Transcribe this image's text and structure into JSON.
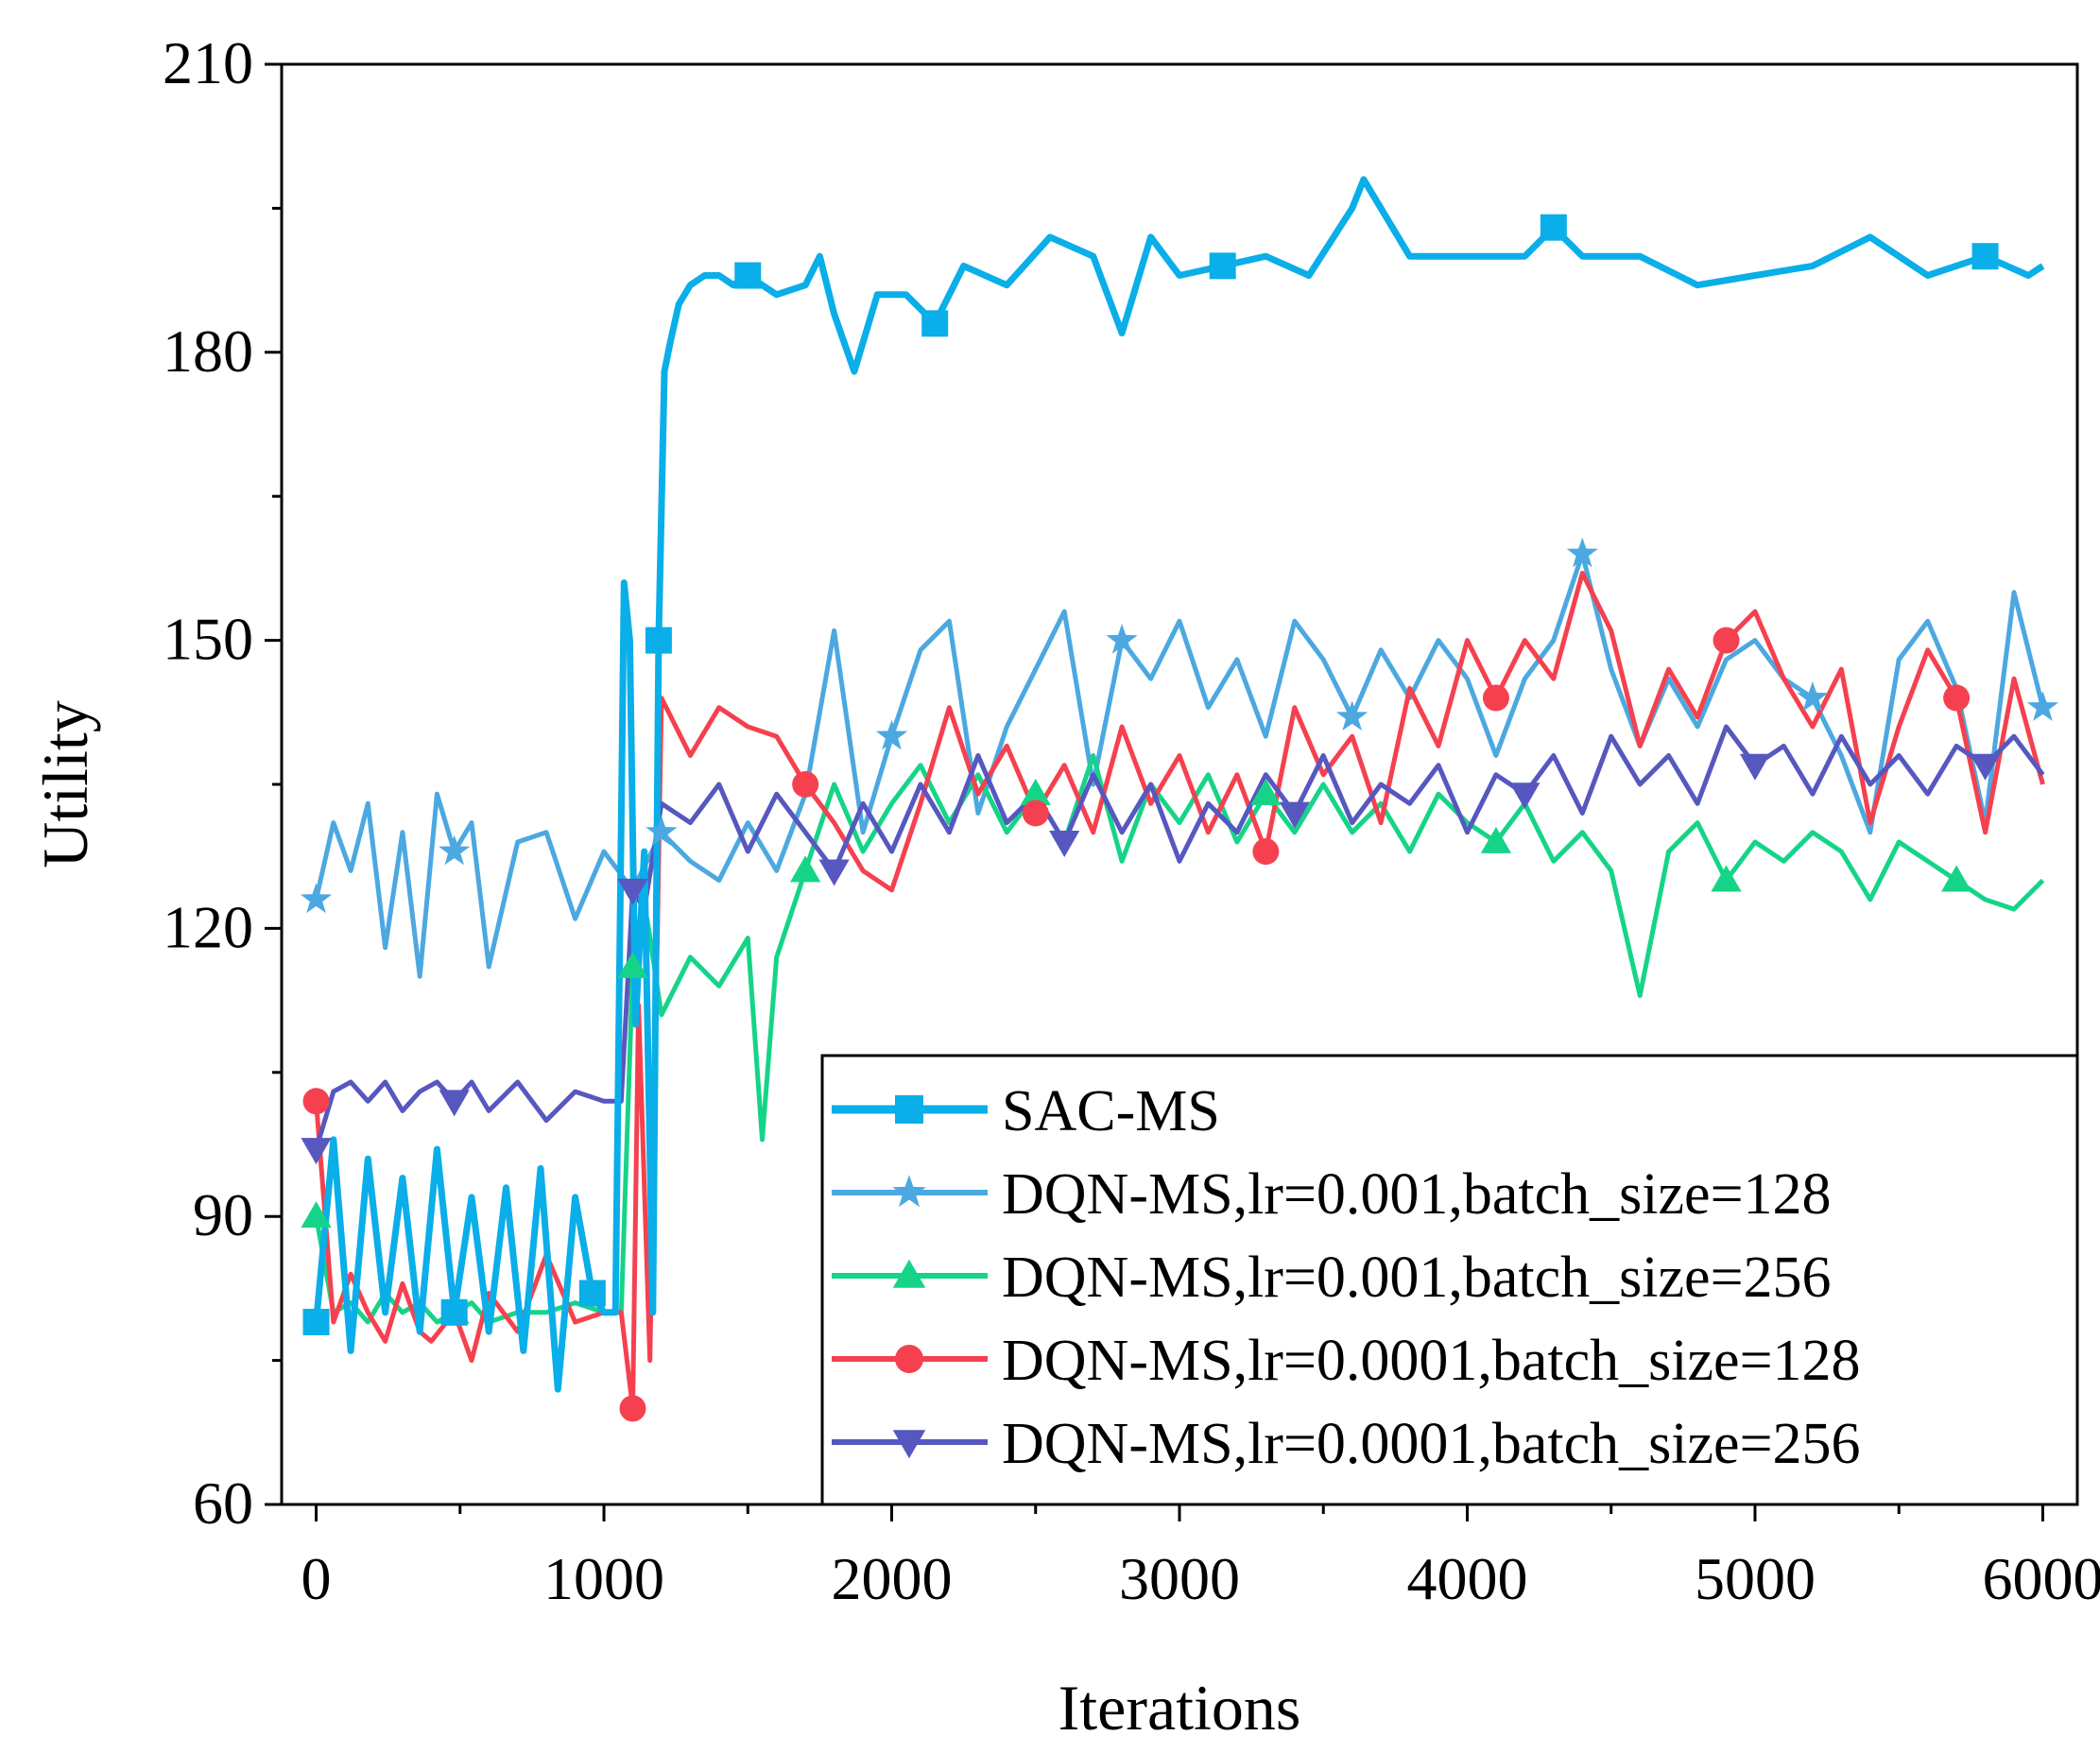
{
  "chart_data": {
    "type": "line",
    "title": "",
    "xlabel": "Iterations",
    "ylabel": "Utility",
    "xlim": [
      -120,
      6120
    ],
    "ylim": [
      60,
      210
    ],
    "xticks": [
      0,
      1000,
      2000,
      3000,
      4000,
      5000,
      6000
    ],
    "xtick_labels": [
      "0",
      "1000",
      "2000",
      "3000",
      "4000",
      "5000",
      "6000"
    ],
    "yticks": [
      60,
      90,
      120,
      150,
      180,
      210
    ],
    "ytick_labels": [
      "60",
      "90",
      "120",
      "150",
      "180",
      "210"
    ],
    "legend_position": "lower-right",
    "series": [
      {
        "name": "SAC-MS",
        "color": "#0aaee8",
        "marker": "square",
        "x": [
          0,
          60,
          120,
          180,
          240,
          300,
          360,
          420,
          480,
          540,
          600,
          660,
          720,
          780,
          840,
          900,
          960,
          1000,
          1040,
          1070,
          1090,
          1110,
          1140,
          1170,
          1190,
          1210,
          1230,
          1260,
          1300,
          1350,
          1400,
          1450,
          1500,
          1600,
          1700,
          1750,
          1800,
          1870,
          1950,
          2050,
          2150,
          2250,
          2400,
          2550,
          2700,
          2800,
          2900,
          3000,
          3150,
          3300,
          3450,
          3600,
          3640,
          3800,
          4000,
          4200,
          4300,
          4400,
          4600,
          4800,
          5000,
          5200,
          5400,
          5600,
          5800,
          5950,
          6000
        ],
        "values": [
          79,
          98,
          76,
          96,
          80,
          94,
          78,
          97,
          80,
          92,
          78,
          93,
          76,
          95,
          72,
          92,
          82,
          80,
          80,
          156,
          150,
          110,
          128,
          80,
          150,
          178,
          181,
          185,
          187,
          188,
          188,
          187,
          188,
          186,
          187,
          190,
          184,
          178,
          186,
          186,
          183,
          189,
          187,
          192,
          190,
          182,
          192,
          188,
          189,
          190,
          188,
          195,
          198,
          190,
          190,
          190,
          193,
          190,
          190,
          187,
          188,
          189,
          192,
          188,
          190,
          188,
          189
        ]
      },
      {
        "name": "DQN-MS,lr=0.001,batch_size=128",
        "color": "#4ca8e0",
        "marker": "star",
        "x": [
          0,
          60,
          120,
          180,
          240,
          300,
          360,
          420,
          480,
          540,
          600,
          700,
          800,
          900,
          1000,
          1100,
          1200,
          1300,
          1400,
          1500,
          1600,
          1700,
          1800,
          1900,
          2000,
          2100,
          2200,
          2300,
          2400,
          2500,
          2600,
          2700,
          2800,
          2900,
          3000,
          3100,
          3200,
          3300,
          3400,
          3500,
          3600,
          3700,
          3800,
          3900,
          4000,
          4100,
          4200,
          4300,
          4400,
          4500,
          4600,
          4700,
          4800,
          4900,
          5000,
          5100,
          5200,
          5300,
          5400,
          5500,
          5600,
          5700,
          5800,
          5900,
          6000
        ],
        "values": [
          123,
          131,
          126,
          133,
          118,
          130,
          115,
          134,
          128,
          131,
          116,
          129,
          130,
          121,
          128,
          124,
          130,
          127,
          125,
          131,
          126,
          134,
          151,
          130,
          140,
          149,
          152,
          132,
          141,
          147,
          153,
          135,
          150,
          146,
          152,
          143,
          148,
          140,
          152,
          148,
          142,
          149,
          144,
          150,
          146,
          138,
          146,
          150,
          159,
          147,
          139,
          146,
          141,
          148,
          150,
          146,
          144,
          138,
          130,
          148,
          152,
          145,
          131,
          155,
          143
        ]
      },
      {
        "name": "DQN-MS,lr=0.001,batch_size=256",
        "color": "#16d487",
        "marker": "triangle-up",
        "x": [
          0,
          60,
          120,
          180,
          240,
          300,
          360,
          420,
          480,
          540,
          600,
          700,
          800,
          900,
          1000,
          1060,
          1100,
          1150,
          1200,
          1300,
          1400,
          1500,
          1550,
          1600,
          1700,
          1800,
          1900,
          2000,
          2100,
          2200,
          2300,
          2400,
          2500,
          2600,
          2700,
          2800,
          2900,
          3000,
          3100,
          3200,
          3300,
          3400,
          3500,
          3600,
          3700,
          3800,
          3900,
          4000,
          4100,
          4200,
          4300,
          4400,
          4500,
          4600,
          4700,
          4800,
          4900,
          5000,
          5100,
          5200,
          5300,
          5400,
          5500,
          5600,
          5700,
          5800,
          5900,
          6000
        ],
        "values": [
          90,
          80,
          81,
          79,
          82,
          80,
          81,
          79,
          80,
          81,
          79,
          80,
          80,
          81,
          80,
          80,
          116,
          121,
          111,
          117,
          114,
          119,
          98,
          117,
          126,
          135,
          128,
          133,
          137,
          131,
          136,
          130,
          134,
          129,
          138,
          127,
          135,
          131,
          136,
          129,
          134,
          130,
          135,
          130,
          133,
          128,
          134,
          131,
          129,
          133,
          127,
          130,
          126,
          113,
          128,
          131,
          125,
          129,
          127,
          130,
          128,
          123,
          129,
          127,
          125,
          123,
          122,
          125
        ]
      },
      {
        "name": "DQN-MS,lr=0.0001,batch_size=128",
        "color": "#f5414f",
        "marker": "circle",
        "x": [
          0,
          60,
          120,
          180,
          240,
          300,
          360,
          400,
          480,
          540,
          600,
          700,
          800,
          900,
          1000,
          1060,
          1100,
          1120,
          1160,
          1200,
          1300,
          1400,
          1500,
          1600,
          1700,
          1800,
          1900,
          2000,
          2100,
          2200,
          2300,
          2400,
          2500,
          2600,
          2700,
          2800,
          2900,
          3000,
          3100,
          3200,
          3300,
          3400,
          3500,
          3600,
          3700,
          3800,
          3900,
          4000,
          4100,
          4200,
          4300,
          4400,
          4500,
          4600,
          4700,
          4800,
          4900,
          5000,
          5100,
          5200,
          5300,
          5400,
          5500,
          5600,
          5700,
          5800,
          5900,
          6000
        ],
        "values": [
          102,
          79,
          84,
          80,
          77,
          83,
          78,
          77,
          80,
          75,
          82,
          78,
          86,
          79,
          80,
          80,
          70,
          112,
          75,
          144,
          138,
          143,
          141,
          140,
          135,
          131,
          126,
          124,
          133,
          143,
          134,
          139,
          132,
          137,
          130,
          141,
          133,
          138,
          130,
          136,
          128,
          143,
          136,
          140,
          131,
          145,
          139,
          150,
          144,
          150,
          146,
          157,
          151,
          139,
          147,
          142,
          150,
          153,
          146,
          141,
          147,
          131,
          141,
          149,
          144,
          130,
          146,
          135
        ]
      },
      {
        "name": "DQN-MS,lr=0.0001,batch_size=256",
        "color": "#5757c0",
        "marker": "triangle-down",
        "x": [
          0,
          60,
          120,
          180,
          240,
          300,
          360,
          420,
          480,
          540,
          600,
          700,
          800,
          900,
          1000,
          1060,
          1100,
          1140,
          1200,
          1300,
          1400,
          1500,
          1600,
          1700,
          1800,
          1900,
          2000,
          2100,
          2200,
          2300,
          2400,
          2500,
          2600,
          2700,
          2800,
          2900,
          3000,
          3100,
          3200,
          3300,
          3400,
          3500,
          3600,
          3700,
          3800,
          3900,
          4000,
          4100,
          4200,
          4300,
          4400,
          4500,
          4600,
          4700,
          4800,
          4900,
          5000,
          5100,
          5200,
          5300,
          5400,
          5500,
          5600,
          5700,
          5800,
          5900,
          6000
        ],
        "values": [
          97,
          103,
          104,
          102,
          104,
          101,
          103,
          104,
          102,
          104,
          101,
          104,
          100,
          103,
          102,
          102,
          124,
          122,
          133,
          131,
          135,
          128,
          134,
          130,
          126,
          133,
          128,
          135,
          130,
          138,
          131,
          134,
          129,
          136,
          130,
          135,
          127,
          133,
          130,
          136,
          132,
          138,
          131,
          135,
          133,
          137,
          130,
          136,
          134,
          138,
          132,
          140,
          135,
          138,
          133,
          141,
          137,
          139,
          134,
          140,
          135,
          138,
          134,
          139,
          137,
          140,
          136
        ]
      }
    ]
  }
}
